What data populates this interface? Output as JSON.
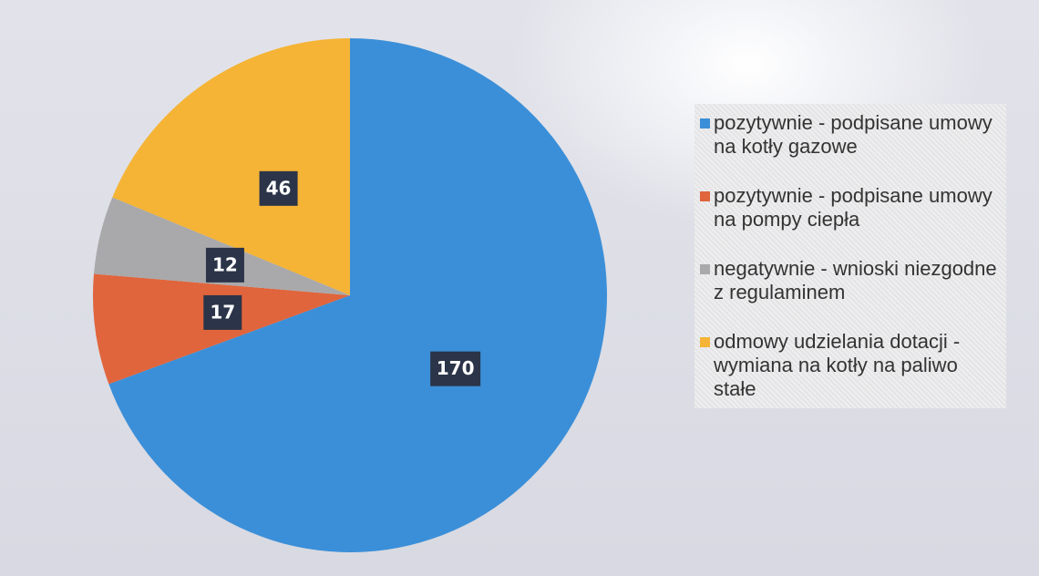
{
  "chart_data": {
    "type": "pie",
    "categories": [
      "pozytywnie - podpisane umowy na kotły gazowe",
      "pozytywnie - podpisane umowy na pompy ciepła",
      "negatywnie - wnioski niezgodne z regulaminem",
      "odmowy udzielania dotacji - wymiana na kotły na paliwo stałe"
    ],
    "values": [
      170,
      17,
      12,
      46
    ],
    "colors": [
      "#3b8fd8",
      "#e0653c",
      "#a9a9ab",
      "#f5b436"
    ],
    "legend": "right"
  }
}
